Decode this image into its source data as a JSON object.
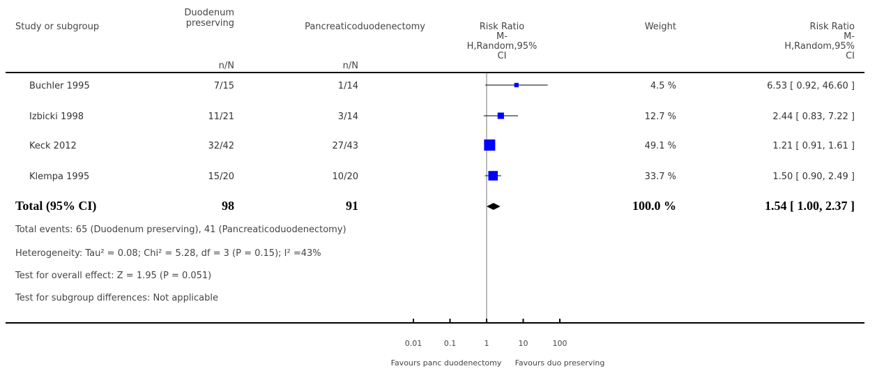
{
  "header": {
    "study": "Study or subgroup",
    "grp1_line1": "Duodenum",
    "grp1_line2": "preserving",
    "grp1_sub": "n/N",
    "grp2": "Pancreaticoduodenectomy",
    "grp2_sub": "n/N",
    "rr_plot_1": "Risk Ratio",
    "rr_plot_2": "M-",
    "rr_plot_3": "H,Random,95%",
    "rr_plot_4": "CI",
    "weight": "Weight",
    "rr_text_1": "Risk Ratio",
    "rr_text_2": "M-",
    "rr_text_3": "H,Random,95%",
    "rr_text_4": "CI"
  },
  "studies": [
    {
      "name": "Buchler 1995",
      "g1": "7/15",
      "g2": "1/14",
      "weight": "4.5 %",
      "ci": "6.53 [ 0.92, 46.60 ]"
    },
    {
      "name": "Izbicki 1998",
      "g1": "11/21",
      "g2": "3/14",
      "weight": "12.7 %",
      "ci": "2.44 [ 0.83, 7.22 ]"
    },
    {
      "name": "Keck 2012",
      "g1": "32/42",
      "g2": "27/43",
      "weight": "49.1 %",
      "ci": "1.21 [ 0.91, 1.61 ]"
    },
    {
      "name": "Klempa 1995",
      "g1": "15/20",
      "g2": "10/20",
      "weight": "33.7 %",
      "ci": "1.50 [ 0.90, 2.49 ]"
    }
  ],
  "total": {
    "label": "Total (95% CI)",
    "g1": "98",
    "g2": "91",
    "weight": "100.0 %",
    "ci": "1.54 [ 1.00, 2.37 ]"
  },
  "footnotes": {
    "events": "Total events: 65 (Duodenum preserving), 41 (Pancreaticoduodenectomy)",
    "heterogeneity": "Heterogeneity: Tau² = 0.08; Chi² = 5.28, df = 3 (P = 0.15); I² =43%",
    "overall": "Test for overall effect: Z = 1.95 (P = 0.051)",
    "subgroup": "Test for subgroup differences: Not applicable"
  },
  "axis": {
    "favours_left": "Favours panc duodenectomy",
    "favours_right": "Favours duo preserving"
  },
  "chart_data": {
    "type": "forest",
    "scale": "log",
    "xlim": [
      0.01,
      100
    ],
    "ticks": [
      0.01,
      0.1,
      1,
      10,
      100
    ],
    "tick_labels": [
      "0.01",
      "0.1",
      "1",
      "10",
      "100"
    ],
    "reference": 1,
    "marker_color": "#0000ff",
    "points": [
      {
        "study": "Buchler 1995",
        "rr": 6.53,
        "lo": 0.92,
        "hi": 46.6,
        "weight": 4.5
      },
      {
        "study": "Izbicki 1998",
        "rr": 2.44,
        "lo": 0.83,
        "hi": 7.22,
        "weight": 12.7
      },
      {
        "study": "Keck 2012",
        "rr": 1.21,
        "lo": 0.91,
        "hi": 1.61,
        "weight": 49.1
      },
      {
        "study": "Klempa 1995",
        "rr": 1.5,
        "lo": 0.9,
        "hi": 2.49,
        "weight": 33.7
      }
    ],
    "pooled": {
      "rr": 1.54,
      "lo": 1.0,
      "hi": 2.37
    }
  }
}
